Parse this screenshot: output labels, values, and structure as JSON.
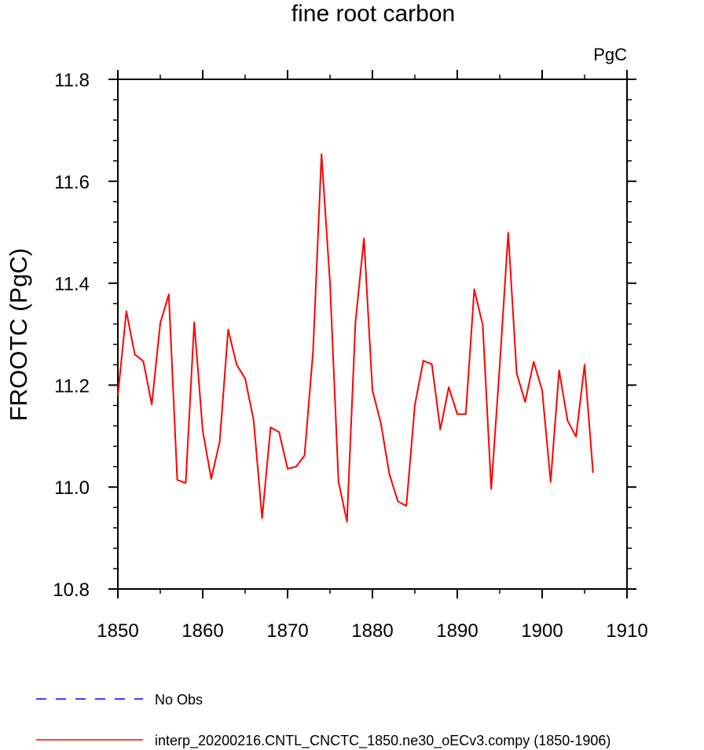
{
  "chart_data": {
    "type": "line",
    "title": "fine root carbon",
    "units_label": "PgC",
    "ylabel": "FROOTC  (PgC)",
    "xlabel": "",
    "xlim": [
      1850,
      1910
    ],
    "ylim": [
      10.8,
      11.8
    ],
    "x_ticks": [
      1850,
      1860,
      1870,
      1880,
      1890,
      1900,
      1910
    ],
    "x_tick_labels": [
      "1850",
      "1860",
      "1870",
      "1880",
      "1890",
      "1900",
      "1910"
    ],
    "y_ticks": [
      10.8,
      11.0,
      11.2,
      11.4,
      11.6,
      11.8
    ],
    "y_tick_labels": [
      "10.8",
      "11.0",
      "11.2",
      "11.4",
      "11.6",
      "11.8"
    ],
    "grid": false,
    "legend_position": "bottom-left",
    "series": [
      {
        "name": "interp_20200216.CNTL_CNCTC_1850.ne30_oECv3.compy (1850-1906)",
        "color": "#ff0000",
        "style": "solid",
        "x": [
          1850,
          1851,
          1852,
          1853,
          1854,
          1855,
          1856,
          1857,
          1858,
          1859,
          1860,
          1861,
          1862,
          1863,
          1864,
          1865,
          1866,
          1867,
          1868,
          1869,
          1870,
          1871,
          1872,
          1873,
          1874,
          1875,
          1876,
          1877,
          1878,
          1879,
          1880,
          1881,
          1882,
          1883,
          1884,
          1885,
          1886,
          1887,
          1888,
          1889,
          1890,
          1891,
          1892,
          1893,
          1894,
          1895,
          1896,
          1897,
          1898,
          1899,
          1900,
          1901,
          1902,
          1903,
          1904,
          1905,
          1906
        ],
        "values": [
          11.18,
          11.345,
          11.26,
          11.247,
          11.162,
          11.322,
          11.378,
          11.014,
          11.008,
          11.323,
          11.111,
          11.016,
          11.089,
          11.309,
          11.24,
          11.213,
          11.131,
          10.939,
          11.117,
          11.108,
          11.036,
          11.04,
          11.062,
          11.266,
          11.653,
          11.4,
          11.011,
          10.932,
          11.323,
          11.488,
          11.19,
          11.125,
          11.025,
          10.972,
          10.963,
          11.161,
          11.248,
          11.241,
          11.113,
          11.196,
          11.143,
          11.143,
          11.388,
          11.318,
          10.996,
          11.238,
          11.499,
          11.223,
          11.167,
          11.246,
          11.19,
          11.01,
          11.229,
          11.13,
          11.099,
          11.24,
          11.028
        ]
      },
      {
        "name": "No Obs",
        "color": "#0000ff",
        "style": "dashed",
        "x": [],
        "values": []
      }
    ]
  }
}
